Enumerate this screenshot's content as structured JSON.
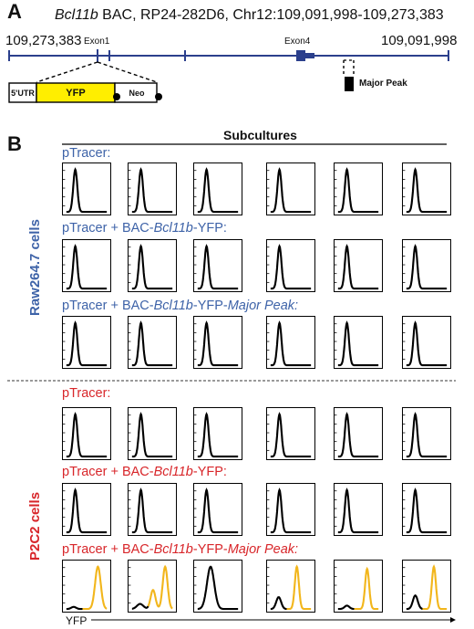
{
  "panel_a": {
    "letter": "A",
    "title_gene": "Bcl11b",
    "title_rest": " BAC, RP24-282D6, Chr12:109,091,998-109,273,383",
    "coord_left": "109,273,383",
    "coord_right": "109,091,998",
    "exon1": "Exon1",
    "exon4": "Exon4",
    "utr": "5'UTR",
    "yfp": "YFP",
    "neo": "Neo",
    "major_peak": "Major Peak",
    "colors": {
      "line": "#2b3f8c",
      "yfp_box": "#ffee00"
    }
  },
  "panel_b": {
    "letter": "B",
    "subcultures": "Subcultures",
    "cells": [
      {
        "name": "Raw264.7 cells",
        "color": "#3e63a8",
        "rows": [
          {
            "pre": "pTracer:",
            "gene": "",
            "post": "",
            "tail": ""
          },
          {
            "pre": "pTracer + BAC-",
            "gene": "Bcl11b",
            "post": "-YFP:",
            "tail": ""
          },
          {
            "pre": "pTracer + BAC-",
            "gene": "Bcl11b",
            "post": "-YFP-",
            "tail": "Major Peak:"
          }
        ]
      },
      {
        "name": "P2C2 cells",
        "color": "#d8262a",
        "rows": [
          {
            "pre": "pTracer:",
            "gene": "",
            "post": "",
            "tail": ""
          },
          {
            "pre": "pTracer + BAC-",
            "gene": "Bcl11b",
            "post": "-YFP:",
            "tail": ""
          },
          {
            "pre": "pTracer + BAC-",
            "gene": "Bcl11b",
            "post": "-YFP-",
            "tail": "Major Peak:"
          }
        ]
      }
    ],
    "x_axis": "YFP",
    "colors": {
      "negative": "#000000",
      "positive": "#f2b61c"
    }
  }
}
